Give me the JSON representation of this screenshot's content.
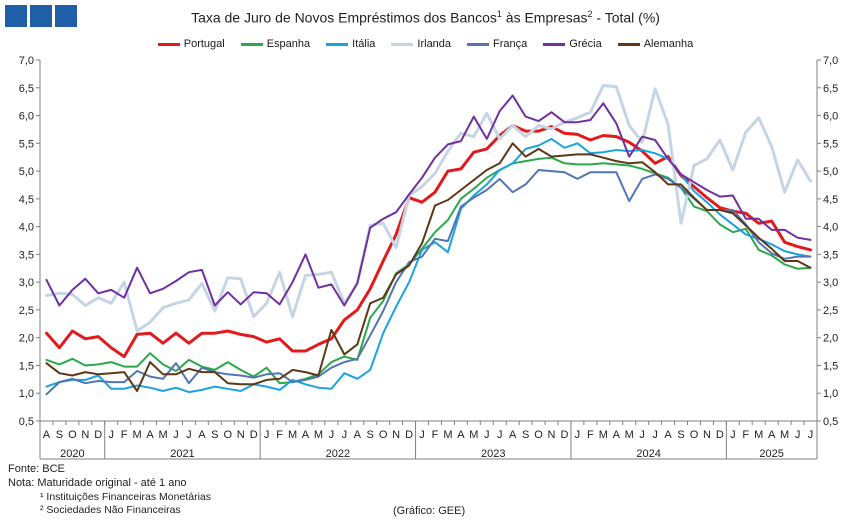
{
  "header": {
    "logo_colors": [
      "#1f5fa8",
      "#1f5fa8",
      "#1f5fa8"
    ],
    "title_main": "Taxa de Juro de Novos Empréstimos dos Bancos",
    "title_sup1": "1",
    "title_mid": " às Empresas",
    "title_sup2": "2",
    "title_end": " - Total (%)"
  },
  "footer": {
    "source": "Fonte: BCE",
    "note": "Nota: Maturidade original - até 1 ano",
    "note1": "¹ Instituições Financeiras Monetárias",
    "note2": "² Sociedades Não Financeiras",
    "credit": "(Gráfico: GEE)"
  },
  "chart_data": {
    "type": "line",
    "ylim": [
      0.5,
      7.0
    ],
    "yticks": [
      "0,5",
      "1,0",
      "1,5",
      "2,0",
      "2,5",
      "3,0",
      "3,5",
      "4,0",
      "4,5",
      "5,0",
      "5,5",
      "6,0",
      "6,5",
      "7,0"
    ],
    "x_months": [
      "A",
      "S",
      "O",
      "N",
      "D",
      "J",
      "F",
      "M",
      "A",
      "M",
      "J",
      "J",
      "A",
      "S",
      "O",
      "N",
      "D",
      "J",
      "F",
      "M",
      "A",
      "M",
      "J",
      "J",
      "A",
      "S",
      "O",
      "N",
      "D",
      "J",
      "F",
      "M",
      "A",
      "M",
      "J",
      "J",
      "A",
      "S",
      "O",
      "N",
      "D",
      "J",
      "F",
      "M",
      "A",
      "M",
      "J",
      "J",
      "A",
      "S",
      "O",
      "N",
      "D",
      "J",
      "F",
      "M",
      "A",
      "M",
      "J",
      "J"
    ],
    "x_years": [
      {
        "label": "2020",
        "start": 0,
        "end": 4
      },
      {
        "label": "2021",
        "start": 5,
        "end": 16
      },
      {
        "label": "2022",
        "start": 17,
        "end": 28
      },
      {
        "label": "2023",
        "start": 29,
        "end": 40
      },
      {
        "label": "2024",
        "start": 41,
        "end": 52
      },
      {
        "label": "2025",
        "start": 53,
        "end": 59
      }
    ],
    "grid": false,
    "legend_position": "top",
    "series": [
      {
        "name": "Portugal",
        "color": "#e31a1c",
        "width": 3,
        "values": [
          2.08,
          1.82,
          2.12,
          1.98,
          2.02,
          1.82,
          1.66,
          2.06,
          2.08,
          1.9,
          2.08,
          1.9,
          2.08,
          2.08,
          2.12,
          2.06,
          2.02,
          1.92,
          1.98,
          1.76,
          1.76,
          1.88,
          1.98,
          2.32,
          2.5,
          2.88,
          3.38,
          3.86,
          4.52,
          4.44,
          4.62,
          5.0,
          5.04,
          5.34,
          5.4,
          5.64,
          5.82,
          5.72,
          5.72,
          5.8,
          5.68,
          5.66,
          5.56,
          5.64,
          5.62,
          5.52,
          5.36,
          5.14,
          5.26,
          4.92,
          4.72,
          4.52,
          4.34,
          4.28,
          4.24,
          4.06,
          4.1,
          3.72,
          3.64,
          3.58
        ]
      },
      {
        "name": "Espanha",
        "color": "#2aa84a",
        "width": 2,
        "values": [
          1.6,
          1.52,
          1.62,
          1.5,
          1.52,
          1.56,
          1.48,
          1.48,
          1.72,
          1.52,
          1.4,
          1.6,
          1.48,
          1.42,
          1.56,
          1.42,
          1.3,
          1.46,
          1.18,
          1.2,
          1.26,
          1.34,
          1.56,
          1.66,
          1.6,
          2.36,
          2.66,
          3.16,
          3.32,
          3.6,
          3.9,
          4.12,
          4.5,
          4.68,
          4.88,
          5.02,
          5.14,
          5.18,
          5.22,
          5.24,
          5.14,
          5.12,
          5.12,
          5.14,
          5.12,
          5.1,
          5.04,
          4.96,
          4.88,
          4.7,
          4.36,
          4.28,
          4.04,
          3.9,
          3.96,
          3.58,
          3.48,
          3.32,
          3.24,
          3.26
        ]
      },
      {
        "name": "Itália",
        "color": "#1aa3e0",
        "width": 2,
        "values": [
          1.12,
          1.2,
          1.24,
          1.24,
          1.32,
          1.08,
          1.08,
          1.14,
          1.1,
          1.04,
          1.1,
          1.02,
          1.06,
          1.12,
          1.08,
          1.04,
          1.16,
          1.12,
          1.06,
          1.24,
          1.16,
          1.1,
          1.08,
          1.36,
          1.26,
          1.42,
          2.08,
          2.56,
          3.0,
          3.58,
          3.72,
          3.54,
          4.32,
          4.56,
          4.76,
          5.02,
          5.14,
          5.4,
          5.46,
          5.58,
          5.42,
          5.5,
          5.32,
          5.34,
          5.38,
          5.36,
          5.38,
          5.32,
          5.22,
          4.94,
          4.64,
          4.44,
          4.22,
          4.04,
          3.86,
          3.78,
          3.68,
          3.56,
          3.5,
          3.46
        ]
      },
      {
        "name": "Irlanda",
        "color": "#c6d5e6",
        "width": 3,
        "values": [
          2.76,
          2.8,
          2.78,
          2.58,
          2.72,
          2.62,
          3.0,
          2.12,
          2.28,
          2.54,
          2.62,
          2.68,
          2.98,
          2.48,
          3.08,
          3.06,
          2.38,
          2.62,
          3.18,
          2.38,
          3.12,
          3.14,
          3.18,
          2.62,
          2.98,
          4.02,
          4.06,
          3.62,
          4.56,
          4.72,
          4.96,
          5.36,
          5.68,
          5.62,
          6.04,
          5.58,
          5.82,
          5.62,
          5.82,
          5.76,
          5.88,
          5.96,
          6.06,
          6.54,
          6.52,
          5.82,
          5.52,
          6.48,
          5.84,
          4.06,
          5.1,
          5.22,
          5.56,
          5.02,
          5.7,
          5.96,
          5.44,
          4.62,
          5.2,
          4.82
        ]
      },
      {
        "name": "França",
        "color": "#5176b3",
        "width": 2,
        "values": [
          0.98,
          1.2,
          1.26,
          1.18,
          1.22,
          1.2,
          1.2,
          1.4,
          1.3,
          1.26,
          1.54,
          1.18,
          1.46,
          1.38,
          1.34,
          1.32,
          1.28,
          1.34,
          1.36,
          1.2,
          1.24,
          1.3,
          1.46,
          1.56,
          1.62,
          2.04,
          2.48,
          3.0,
          3.36,
          3.46,
          3.78,
          3.74,
          4.36,
          4.52,
          4.66,
          4.86,
          4.62,
          4.76,
          5.02,
          5.0,
          4.98,
          4.86,
          4.98,
          4.98,
          4.98,
          4.46,
          4.86,
          4.94,
          4.86,
          4.7,
          4.5,
          4.3,
          4.3,
          4.3,
          4.04,
          3.72,
          3.52,
          3.42,
          3.46,
          3.46
        ]
      },
      {
        "name": "Grécia",
        "color": "#7030a0",
        "width": 2,
        "values": [
          3.04,
          2.58,
          2.86,
          3.06,
          2.8,
          2.86,
          2.72,
          3.26,
          2.8,
          2.88,
          3.02,
          3.18,
          3.22,
          2.58,
          2.82,
          2.6,
          2.82,
          2.8,
          2.6,
          3.0,
          3.5,
          2.9,
          2.96,
          2.58,
          2.98,
          3.98,
          4.14,
          4.26,
          4.58,
          4.88,
          5.24,
          5.48,
          5.54,
          5.98,
          5.58,
          6.08,
          6.36,
          5.98,
          5.9,
          6.06,
          5.88,
          5.88,
          5.92,
          6.22,
          5.86,
          5.26,
          5.62,
          5.56,
          5.22,
          4.94,
          4.8,
          4.66,
          4.54,
          4.56,
          4.14,
          4.14,
          3.94,
          3.94,
          3.8,
          3.76
        ]
      },
      {
        "name": "Alemanha",
        "color": "#5c3817",
        "width": 2,
        "values": [
          1.54,
          1.36,
          1.32,
          1.38,
          1.34,
          1.36,
          1.38,
          1.04,
          1.56,
          1.34,
          1.34,
          1.44,
          1.38,
          1.38,
          1.18,
          1.16,
          1.16,
          1.24,
          1.26,
          1.42,
          1.38,
          1.32,
          2.14,
          1.7,
          1.88,
          2.62,
          2.72,
          3.14,
          3.3,
          3.7,
          4.38,
          4.48,
          4.66,
          4.84,
          5.02,
          5.14,
          5.5,
          5.26,
          5.4,
          5.26,
          5.28,
          5.3,
          5.3,
          5.24,
          5.18,
          5.14,
          5.16,
          4.98,
          4.76,
          4.76,
          4.52,
          4.3,
          4.3,
          4.24,
          4.02,
          3.8,
          3.6,
          3.38,
          3.38,
          3.26
        ]
      }
    ]
  }
}
